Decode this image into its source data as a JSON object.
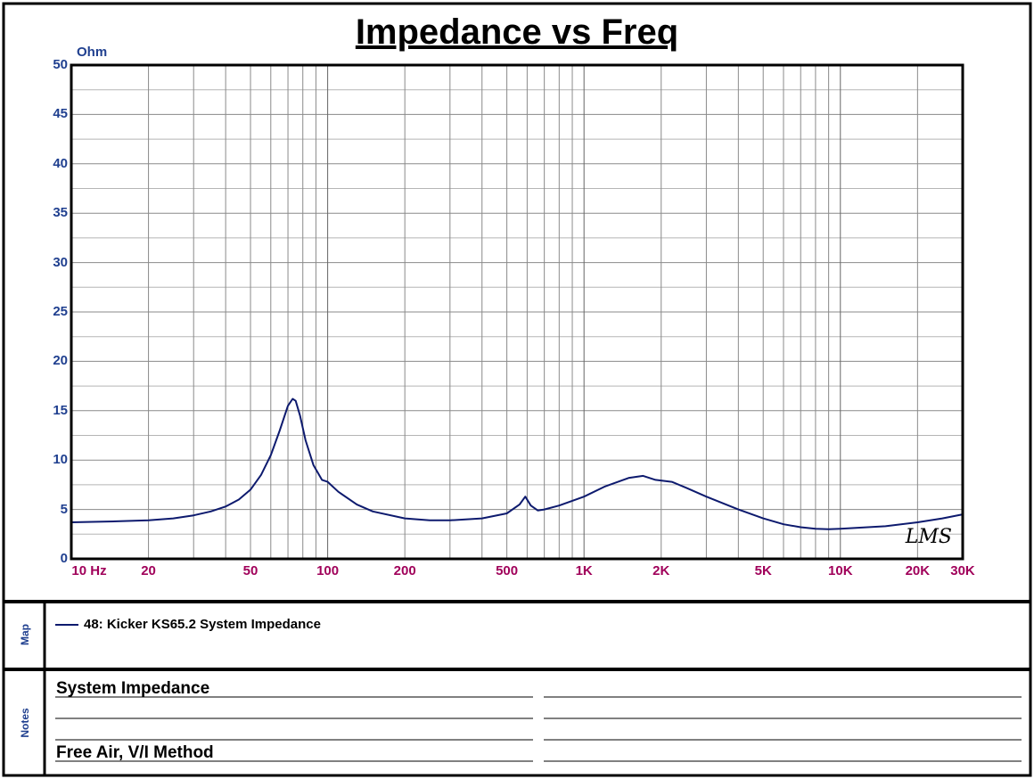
{
  "chart_data": {
    "type": "line",
    "title": "Impedance vs Freq",
    "ylabel": "Ohm",
    "xlabel": "",
    "xscale": "log",
    "xlim": [
      10,
      30000
    ],
    "ylim": [
      0,
      50
    ],
    "grid": true,
    "y_ticks": [
      {
        "value": 0,
        "label": "0"
      },
      {
        "value": 5,
        "label": "5"
      },
      {
        "value": 10,
        "label": "10"
      },
      {
        "value": 15,
        "label": "15"
      },
      {
        "value": 20,
        "label": "20"
      },
      {
        "value": 25,
        "label": "25"
      },
      {
        "value": 30,
        "label": "30"
      },
      {
        "value": 35,
        "label": "35"
      },
      {
        "value": 40,
        "label": "40"
      },
      {
        "value": 45,
        "label": "45"
      },
      {
        "value": 50,
        "label": "50"
      }
    ],
    "x_ticks": [
      {
        "value": 10,
        "label": "10 Hz"
      },
      {
        "value": 20,
        "label": "20"
      },
      {
        "value": 50,
        "label": "50"
      },
      {
        "value": 100,
        "label": "100"
      },
      {
        "value": 200,
        "label": "200"
      },
      {
        "value": 500,
        "label": "500"
      },
      {
        "value": 1000,
        "label": "1K"
      },
      {
        "value": 2000,
        "label": "2K"
      },
      {
        "value": 5000,
        "label": "5K"
      },
      {
        "value": 10000,
        "label": "10K"
      },
      {
        "value": 20000,
        "label": "20K"
      },
      {
        "value": 30000,
        "label": "30K"
      }
    ],
    "series": [
      {
        "name": "48: Kicker KS65.2 System Impedance",
        "color": "#0d1a6e",
        "x": [
          10,
          15,
          20,
          25,
          30,
          35,
          40,
          45,
          50,
          55,
          60,
          65,
          70,
          73,
          75,
          78,
          82,
          88,
          95,
          100,
          110,
          130,
          150,
          200,
          250,
          300,
          400,
          500,
          560,
          590,
          620,
          660,
          700,
          800,
          1000,
          1200,
          1500,
          1700,
          1900,
          2200,
          2500,
          3000,
          4000,
          5000,
          6000,
          7000,
          8000,
          9000,
          10000,
          15000,
          20000,
          25000,
          30000
        ],
        "y": [
          3.7,
          3.8,
          3.9,
          4.1,
          4.4,
          4.8,
          5.3,
          6.0,
          7.0,
          8.5,
          10.5,
          13.0,
          15.5,
          16.2,
          16.0,
          14.5,
          12.0,
          9.5,
          8.0,
          7.8,
          6.8,
          5.5,
          4.8,
          4.1,
          3.9,
          3.9,
          4.1,
          4.6,
          5.5,
          6.3,
          5.4,
          4.9,
          5.0,
          5.4,
          6.3,
          7.3,
          8.2,
          8.4,
          8.0,
          7.8,
          7.2,
          6.3,
          5.0,
          4.1,
          3.5,
          3.2,
          3.05,
          3.0,
          3.05,
          3.3,
          3.7,
          4.1,
          4.5
        ]
      }
    ]
  },
  "map": {
    "section_label": "Map",
    "entry": "48: Kicker KS65.2 System Impedance"
  },
  "notes": {
    "section_label": "Notes",
    "line1": "System Impedance",
    "line4": "Free Air, V/I Method"
  },
  "logo_text": "LMS"
}
